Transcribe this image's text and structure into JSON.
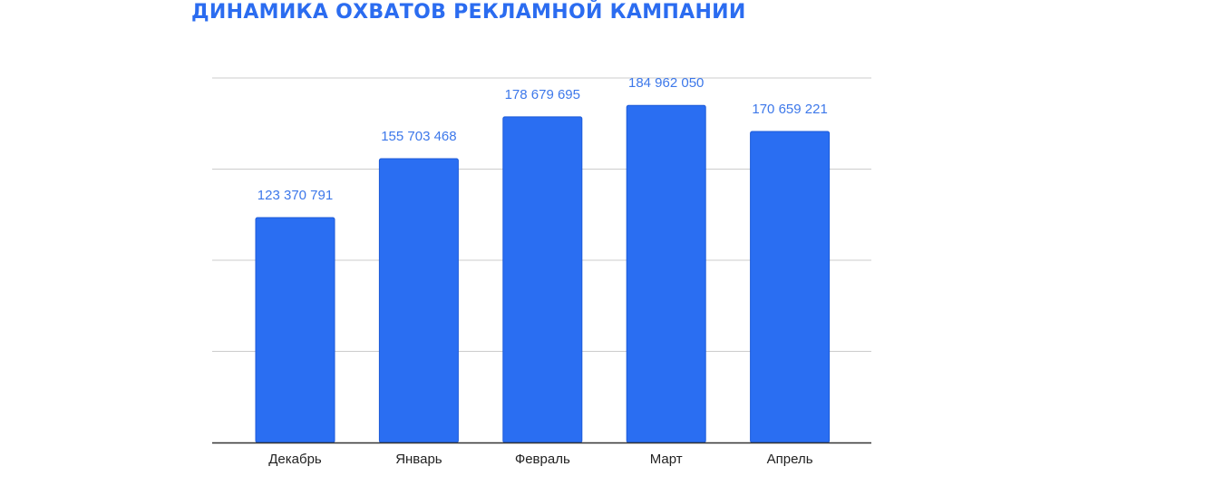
{
  "title": "ДИНАМИКА ОХВАТОВ РЕКЛАМНОЙ КАМПАНИИ",
  "chart_data": {
    "type": "bar",
    "categories": [
      "Декабрь",
      "Январь",
      "Февраль",
      "Март",
      "Апрель"
    ],
    "values": [
      123370791,
      155703468,
      178679695,
      184962050,
      170659221
    ],
    "data_labels": [
      "123 370 791",
      "155 703 468",
      "178 679 695",
      "184 962 050",
      "170 659 221"
    ],
    "xlabel": "",
    "ylabel": "",
    "ylim": [
      0,
      200000000
    ],
    "y_gridlines": [
      50000000,
      100000000,
      150000000,
      200000000
    ],
    "y_tick_labels_shown": false,
    "grid": true,
    "legend": "none"
  },
  "colors": {
    "title": "#2b6cf0",
    "bar": "#2a6ef2",
    "bar_stroke": "#1c5ad8",
    "data_label": "#3d78ea",
    "tick_label": "#222222",
    "gridline": "#cccccc",
    "baseline": "#333333"
  }
}
